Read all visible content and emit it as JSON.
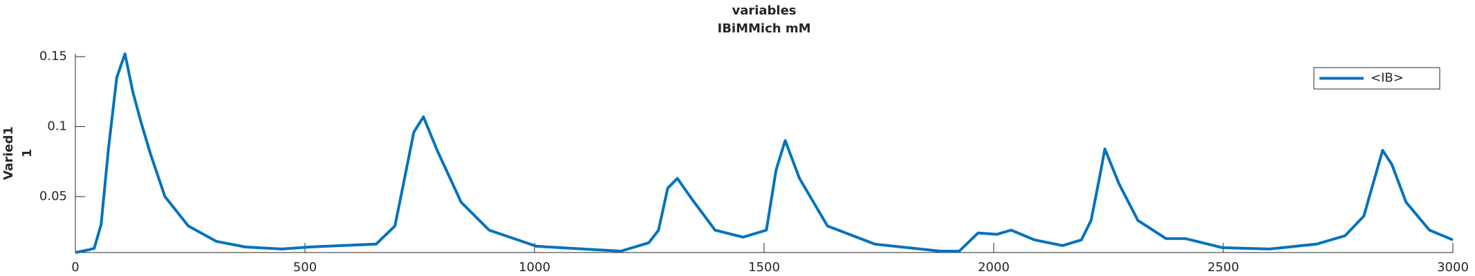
{
  "chart_data": {
    "type": "line",
    "title": "variables",
    "subtitle": "IBiMMich mM",
    "y_label": [
      "Varied1",
      "1"
    ],
    "x": [
      0,
      30,
      41,
      56,
      72,
      90,
      108,
      125,
      143,
      164,
      195,
      246,
      307,
      370,
      450,
      512,
      580,
      655,
      696,
      715,
      737,
      758,
      788,
      840,
      901,
      1004,
      1106,
      1188,
      1249,
      1270,
      1290,
      1311,
      1341,
      1393,
      1454,
      1505,
      1526,
      1546,
      1577,
      1638,
      1741,
      1884,
      1925,
      1966,
      2007,
      2038,
      2089,
      2150,
      2191,
      2212,
      2232,
      2242,
      2273,
      2314,
      2375,
      2417,
      2498,
      2601,
      2703,
      2765,
      2806,
      2826,
      2847,
      2867,
      2898,
      2949,
      3000
    ],
    "series": [
      {
        "name": "<IB>",
        "color": "#0072bd",
        "values": [
          0.01,
          0.012,
          0.013,
          0.03,
          0.084,
          0.135,
          0.152,
          0.125,
          0.103,
          0.08,
          0.05,
          0.029,
          0.018,
          0.014,
          0.0125,
          0.014,
          0.015,
          0.016,
          0.029,
          0.06,
          0.096,
          0.107,
          0.083,
          0.046,
          0.026,
          0.0145,
          0.0125,
          0.011,
          0.017,
          0.026,
          0.056,
          0.063,
          0.049,
          0.026,
          0.021,
          0.026,
          0.069,
          0.09,
          0.063,
          0.029,
          0.016,
          0.011,
          0.011,
          0.024,
          0.023,
          0.026,
          0.019,
          0.015,
          0.019,
          0.033,
          0.066,
          0.084,
          0.059,
          0.033,
          0.02,
          0.02,
          0.0135,
          0.0125,
          0.016,
          0.022,
          0.036,
          0.059,
          0.083,
          0.073,
          0.046,
          0.026,
          0.019
        ]
      }
    ],
    "xlim": [
      0,
      3000
    ],
    "xticks": [
      0,
      500,
      1000,
      1500,
      2000,
      2500,
      3000
    ],
    "ylim": [
      0.01,
      0.152
    ],
    "yticks": [
      0.05,
      0.1,
      0.15
    ],
    "grid": false,
    "legend": "northeast"
  }
}
